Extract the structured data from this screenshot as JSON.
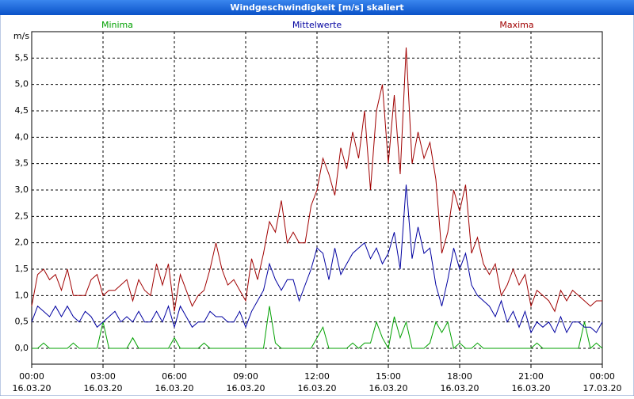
{
  "chart_data": {
    "type": "line",
    "title": "Windgeschwindigkeit [m/s] skaliert",
    "y_label": "m/s",
    "x": [
      "16.03.20 00:00",
      "16.03.20 00:15",
      "16.03.20 00:30",
      "16.03.20 00:45",
      "16.03.20 01:00",
      "16.03.20 01:15",
      "16.03.20 01:30",
      "16.03.20 01:45",
      "16.03.20 02:00",
      "16.03.20 02:15",
      "16.03.20 02:30",
      "16.03.20 02:45",
      "16.03.20 03:00",
      "16.03.20 03:15",
      "16.03.20 03:30",
      "16.03.20 03:45",
      "16.03.20 04:00",
      "16.03.20 04:15",
      "16.03.20 04:30",
      "16.03.20 04:45",
      "16.03.20 05:00",
      "16.03.20 05:15",
      "16.03.20 05:30",
      "16.03.20 05:45",
      "16.03.20 06:00",
      "16.03.20 06:15",
      "16.03.20 06:30",
      "16.03.20 06:45",
      "16.03.20 07:00",
      "16.03.20 07:15",
      "16.03.20 07:30",
      "16.03.20 07:45",
      "16.03.20 08:00",
      "16.03.20 08:15",
      "16.03.20 08:30",
      "16.03.20 08:45",
      "16.03.20 09:00",
      "16.03.20 09:15",
      "16.03.20 09:30",
      "16.03.20 09:45",
      "16.03.20 10:00",
      "16.03.20 10:15",
      "16.03.20 10:30",
      "16.03.20 10:45",
      "16.03.20 11:00",
      "16.03.20 11:15",
      "16.03.20 11:30",
      "16.03.20 11:45",
      "16.03.20 12:00",
      "16.03.20 12:15",
      "16.03.20 12:30",
      "16.03.20 12:45",
      "16.03.20 13:00",
      "16.03.20 13:15",
      "16.03.20 13:30",
      "16.03.20 13:45",
      "16.03.20 14:00",
      "16.03.20 14:15",
      "16.03.20 14:30",
      "16.03.20 14:45",
      "16.03.20 15:00",
      "16.03.20 15:15",
      "16.03.20 15:30",
      "16.03.20 15:45",
      "16.03.20 16:00",
      "16.03.20 16:15",
      "16.03.20 16:30",
      "16.03.20 16:45",
      "16.03.20 17:00",
      "16.03.20 17:15",
      "16.03.20 17:30",
      "16.03.20 17:45",
      "16.03.20 18:00",
      "16.03.20 18:15",
      "16.03.20 18:30",
      "16.03.20 18:45",
      "16.03.20 19:00",
      "16.03.20 19:15",
      "16.03.20 19:30",
      "16.03.20 19:45",
      "16.03.20 20:00",
      "16.03.20 20:15",
      "16.03.20 20:30",
      "16.03.20 20:45",
      "16.03.20 21:00",
      "16.03.20 21:15",
      "16.03.20 21:30",
      "16.03.20 21:45",
      "16.03.20 22:00",
      "16.03.20 22:15",
      "16.03.20 22:30",
      "16.03.20 22:45",
      "16.03.20 23:00",
      "16.03.20 23:15",
      "16.03.20 23:30",
      "16.03.20 23:45",
      "17.03.20 00:00"
    ],
    "series": [
      {
        "name": "Minima",
        "color": "#00a000",
        "values": [
          0,
          0,
          0.1,
          0,
          0,
          0,
          0,
          0.1,
          0,
          0,
          0,
          0,
          0.5,
          0,
          0,
          0,
          0,
          0.2,
          0,
          0,
          0,
          0,
          0,
          0,
          0.2,
          0,
          0,
          0,
          0,
          0.1,
          0,
          0,
          0,
          0,
          0,
          0,
          0,
          0,
          0,
          0,
          0.8,
          0.1,
          0,
          0,
          0,
          0,
          0,
          0,
          0.2,
          0.4,
          0,
          0,
          0,
          0,
          0.1,
          0,
          0.1,
          0.1,
          0.5,
          0.2,
          0,
          0.6,
          0.2,
          0.5,
          0,
          0,
          0,
          0.1,
          0.5,
          0.3,
          0.5,
          0,
          0.1,
          0,
          0,
          0.1,
          0,
          0,
          0,
          0,
          0,
          0,
          0,
          0,
          0,
          0.1,
          0,
          0,
          0,
          0,
          0,
          0,
          0,
          0.5,
          0,
          0.1,
          0
        ]
      },
      {
        "name": "Mittelwerte",
        "color": "#0000a0",
        "values": [
          0.5,
          0.8,
          0.7,
          0.6,
          0.8,
          0.6,
          0.8,
          0.6,
          0.5,
          0.7,
          0.6,
          0.4,
          0.5,
          0.6,
          0.7,
          0.5,
          0.6,
          0.5,
          0.7,
          0.5,
          0.5,
          0.7,
          0.5,
          0.8,
          0.4,
          0.8,
          0.6,
          0.4,
          0.5,
          0.5,
          0.7,
          0.6,
          0.6,
          0.5,
          0.5,
          0.7,
          0.4,
          0.7,
          0.9,
          1.1,
          1.6,
          1.3,
          1.1,
          1.3,
          1.3,
          0.9,
          1.2,
          1.5,
          1.9,
          1.8,
          1.3,
          1.9,
          1.4,
          1.6,
          1.8,
          1.9,
          2.0,
          1.7,
          1.9,
          1.6,
          1.8,
          2.2,
          1.5,
          3.1,
          1.7,
          2.3,
          1.8,
          1.9,
          1.2,
          0.8,
          1.3,
          1.9,
          1.5,
          1.8,
          1.2,
          1.0,
          0.9,
          0.8,
          0.6,
          0.9,
          0.5,
          0.7,
          0.4,
          0.7,
          0.3,
          0.5,
          0.4,
          0.5,
          0.3,
          0.6,
          0.3,
          0.5,
          0.5,
          0.4,
          0.4,
          0.3,
          0.5
        ]
      },
      {
        "name": "Maxima",
        "color": "#a00000",
        "values": [
          0.8,
          1.4,
          1.5,
          1.3,
          1.4,
          1.1,
          1.5,
          1.0,
          1.0,
          1.0,
          1.3,
          1.4,
          1.0,
          1.1,
          1.1,
          1.2,
          1.3,
          0.9,
          1.3,
          1.1,
          1.0,
          1.6,
          1.2,
          1.6,
          0.7,
          1.4,
          1.1,
          0.8,
          1.0,
          1.1,
          1.5,
          2.0,
          1.5,
          1.2,
          1.3,
          1.1,
          0.9,
          1.7,
          1.3,
          1.8,
          2.4,
          2.2,
          2.8,
          2.0,
          2.2,
          2.0,
          2.0,
          2.7,
          3.0,
          3.6,
          3.3,
          2.9,
          3.8,
          3.4,
          4.1,
          3.6,
          4.5,
          3.0,
          4.5,
          5.0,
          3.5,
          4.8,
          3.3,
          5.7,
          3.5,
          4.1,
          3.6,
          3.9,
          3.2,
          1.8,
          2.2,
          3.0,
          2.6,
          3.1,
          1.8,
          2.1,
          1.6,
          1.4,
          1.6,
          1.0,
          1.2,
          1.5,
          1.2,
          1.4,
          0.8,
          1.1,
          1.0,
          0.9,
          0.7,
          1.1,
          0.9,
          1.1,
          1.0,
          0.9,
          0.8,
          0.9,
          0.9
        ]
      }
    ],
    "xlim": [
      "16.03.20 00:00",
      "17.03.20 00:00"
    ],
    "xticks": [
      {
        "value": "16.03.20 00:00",
        "label": "00:00",
        "date": "16.03.20"
      },
      {
        "value": "16.03.20 03:00",
        "label": "03:00",
        "date": "16.03.20"
      },
      {
        "value": "16.03.20 06:00",
        "label": "06:00",
        "date": "16.03.20"
      },
      {
        "value": "16.03.20 09:00",
        "label": "09:00",
        "date": "16.03.20"
      },
      {
        "value": "16.03.20 12:00",
        "label": "12:00",
        "date": "16.03.20"
      },
      {
        "value": "16.03.20 15:00",
        "label": "15:00",
        "date": "16.03.20"
      },
      {
        "value": "16.03.20 18:00",
        "label": "18:00",
        "date": "16.03.20"
      },
      {
        "value": "16.03.20 21:00",
        "label": "21:00",
        "date": "16.03.20"
      },
      {
        "value": "17.03.20 00:00",
        "label": "00:00",
        "date": "17.03.20"
      }
    ],
    "ylim": [
      -0.3,
      6.0
    ],
    "yticks": [
      {
        "value": 0,
        "label": "0,0"
      },
      {
        "value": 0.5,
        "label": "0,5"
      },
      {
        "value": 1,
        "label": "1,0"
      },
      {
        "value": 1.5,
        "label": "1,5"
      },
      {
        "value": 2,
        "label": "2,0"
      },
      {
        "value": 2.5,
        "label": "2,5"
      },
      {
        "value": 3,
        "label": "3,0"
      },
      {
        "value": 3.5,
        "label": "3,5"
      },
      {
        "value": 4,
        "label": "4,0"
      },
      {
        "value": 4.5,
        "label": "4,5"
      },
      {
        "value": 5,
        "label": "5,0"
      },
      {
        "value": 5.5,
        "label": "5,5"
      }
    ],
    "grid": true
  }
}
